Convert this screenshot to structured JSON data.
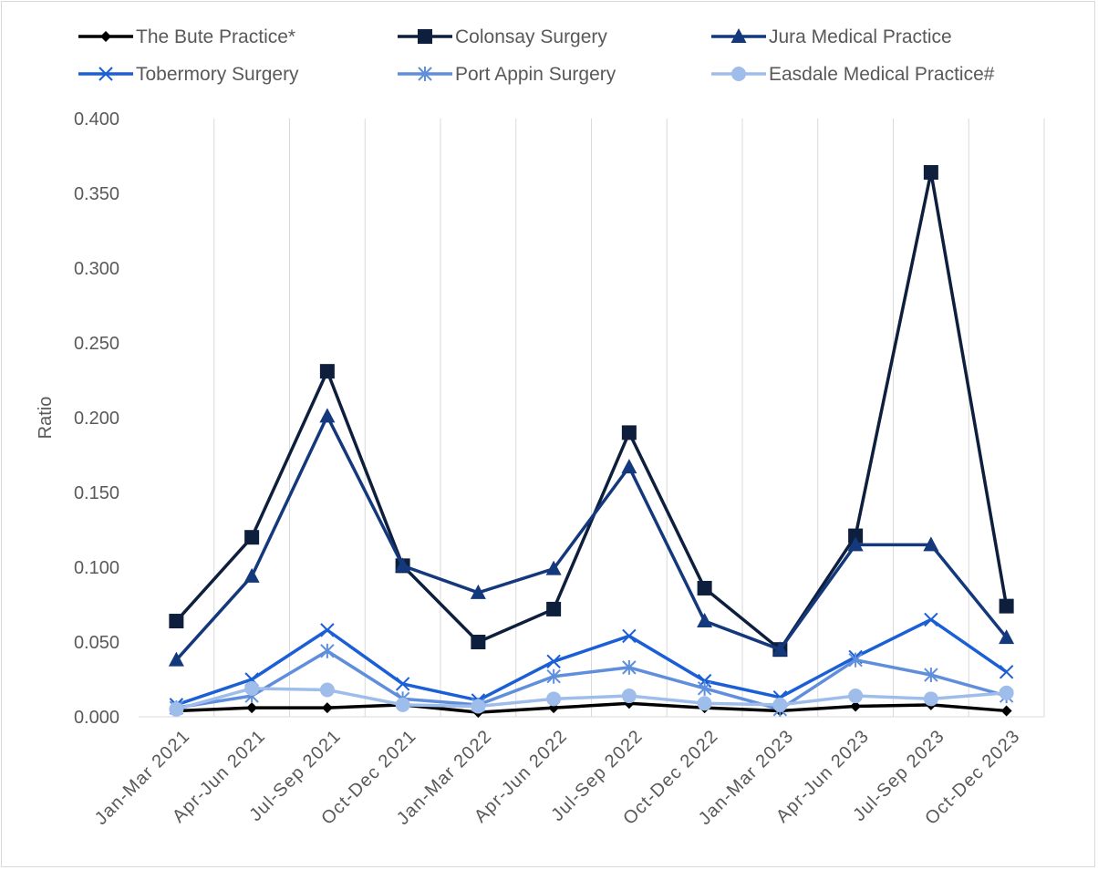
{
  "chart_data": {
    "type": "line",
    "title": "",
    "xlabel": "",
    "ylabel": "Ratio",
    "ylim": [
      0,
      0.4
    ],
    "yticks": [
      "0.000",
      "0.050",
      "0.100",
      "0.150",
      "0.200",
      "0.250",
      "0.300",
      "0.350",
      "0.400"
    ],
    "grid": "vertical",
    "legend_position": "top",
    "categories": [
      "Jan-Mar 2021",
      "Apr-Jun 2021",
      "Jul-Sep 2021",
      "Oct-Dec 2021",
      "Jan-Mar 2022",
      "Apr-Jun 2022",
      "Jul-Sep 2022",
      "Oct-Dec 2022",
      "Jan-Mar 2023",
      "Apr-Jun 2023",
      "Jul-Sep 2023",
      "Oct-Dec 2023"
    ],
    "series": [
      {
        "name": "The Bute Practice*",
        "color": "#000000",
        "marker": "diamond",
        "values": [
          0.004,
          0.006,
          0.006,
          0.008,
          0.003,
          0.006,
          0.009,
          0.006,
          0.004,
          0.007,
          0.008,
          0.004
        ]
      },
      {
        "name": "Colonsay Surgery",
        "color": "#0e1f3d",
        "marker": "square",
        "values": [
          0.064,
          0.12,
          0.231,
          0.101,
          0.05,
          0.072,
          0.19,
          0.086,
          0.045,
          0.121,
          0.364,
          0.074
        ]
      },
      {
        "name": "Jura Medical Practice",
        "color": "#13387c",
        "marker": "triangle",
        "values": [
          0.038,
          0.094,
          0.201,
          0.101,
          0.083,
          0.099,
          0.167,
          0.064,
          0.045,
          0.115,
          0.115,
          0.053
        ]
      },
      {
        "name": "Tobermory Surgery",
        "color": "#1b5fd6",
        "marker": "x",
        "values": [
          0.008,
          0.025,
          0.058,
          0.022,
          0.011,
          0.037,
          0.054,
          0.024,
          0.013,
          0.04,
          0.065,
          0.03
        ]
      },
      {
        "name": "Port Appin Surgery",
        "color": "#5f8fdc",
        "marker": "asterisk",
        "values": [
          0.006,
          0.014,
          0.044,
          0.012,
          0.008,
          0.027,
          0.033,
          0.019,
          0.005,
          0.038,
          0.028,
          0.014
        ]
      },
      {
        "name": "Easdale Medical Practice#",
        "color": "#9fbdea",
        "marker": "circle",
        "values": [
          0.005,
          0.019,
          0.018,
          0.008,
          0.007,
          0.012,
          0.014,
          0.009,
          0.008,
          0.014,
          0.012,
          0.016
        ]
      }
    ]
  }
}
